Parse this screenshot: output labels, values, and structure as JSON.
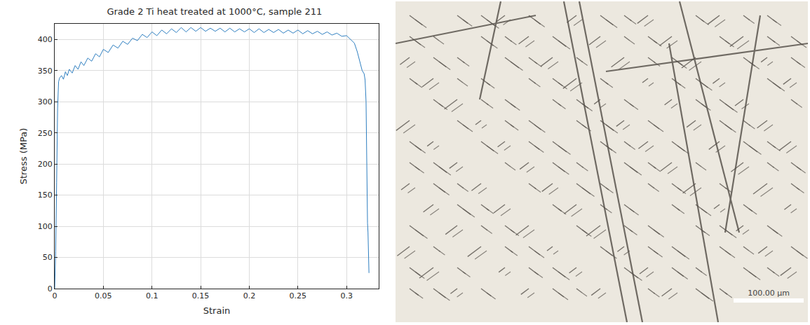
{
  "chart_data": {
    "type": "line",
    "title": "Grade 2 Ti heat treated at 1000°C, sample 211",
    "x_label": "Strain",
    "y_label": "Stress (MPa)",
    "x": [
      0,
      0.001,
      0.002,
      0.003,
      0.004,
      0.005,
      0.007,
      0.009,
      0.011,
      0.013,
      0.015,
      0.018,
      0.021,
      0.024,
      0.027,
      0.03,
      0.034,
      0.038,
      0.042,
      0.046,
      0.05,
      0.055,
      0.06,
      0.065,
      0.07,
      0.075,
      0.08,
      0.085,
      0.09,
      0.095,
      0.1,
      0.105,
      0.11,
      0.115,
      0.12,
      0.125,
      0.13,
      0.135,
      0.14,
      0.145,
      0.15,
      0.155,
      0.16,
      0.165,
      0.17,
      0.175,
      0.18,
      0.185,
      0.19,
      0.195,
      0.2,
      0.205,
      0.21,
      0.215,
      0.22,
      0.225,
      0.23,
      0.235,
      0.24,
      0.245,
      0.25,
      0.255,
      0.26,
      0.265,
      0.27,
      0.275,
      0.28,
      0.285,
      0.29,
      0.295,
      0.3,
      0.304,
      0.308,
      0.311,
      0.314,
      0.316,
      0.318,
      0.319,
      0.32,
      0.3205,
      0.321,
      0.3215,
      0.322,
      0.3225,
      0.323
    ],
    "series": [
      {
        "name": "sample 211",
        "color": "#2f7fc1",
        "values": [
          0,
          60,
          170,
          290,
          332,
          338,
          342,
          336,
          348,
          342,
          352,
          346,
          358,
          352,
          364,
          358,
          370,
          365,
          377,
          372,
          384,
          379,
          391,
          386,
          397,
          392,
          402,
          398,
          408,
          403,
          412,
          406,
          415,
          409,
          417,
          411,
          419,
          412,
          419,
          413,
          419,
          413,
          418,
          413,
          418,
          412,
          418,
          412,
          417,
          412,
          417,
          411,
          417,
          411,
          416,
          411,
          416,
          410,
          415,
          410,
          415,
          409,
          414,
          409,
          413,
          408,
          412,
          407,
          410,
          405,
          406,
          400,
          394,
          380,
          362,
          350,
          345,
          335,
          300,
          210,
          120,
          105,
          90,
          55,
          25
        ]
      }
    ],
    "xlim": [
      0,
      0.333
    ],
    "xticks": [
      0,
      0.05,
      0.1,
      0.15,
      0.2,
      0.25,
      0.3
    ],
    "ylim": [
      0,
      425
    ],
    "yticks": [
      0,
      50,
      100,
      150,
      200,
      250,
      300,
      350,
      400
    ],
    "grid": true
  },
  "micrograph": {
    "scale_bar": "100.00 µm"
  }
}
